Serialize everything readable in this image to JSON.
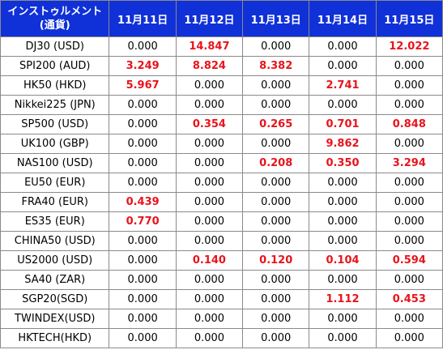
{
  "header": {
    "instrument_line1": "インストゥルメント",
    "instrument_line2": "(通貨)",
    "dates": [
      "11月11日",
      "11月12日",
      "11月13日",
      "11月14日",
      "11月15日"
    ]
  },
  "rows": [
    {
      "instrument": "DJ30 (USD)",
      "values": [
        "0.000",
        "14.847",
        "0.000",
        "0.000",
        "12.022"
      ]
    },
    {
      "instrument": "SPI200 (AUD)",
      "values": [
        "3.249",
        "8.824",
        "8.382",
        "0.000",
        "0.000"
      ]
    },
    {
      "instrument": "HK50 (HKD)",
      "values": [
        "5.967",
        "0.000",
        "0.000",
        "2.741",
        "0.000"
      ]
    },
    {
      "instrument": "Nikkei225 (JPN)",
      "values": [
        "0.000",
        "0.000",
        "0.000",
        "0.000",
        "0.000"
      ]
    },
    {
      "instrument": "SP500 (USD)",
      "values": [
        "0.000",
        "0.354",
        "0.265",
        "0.701",
        "0.848"
      ]
    },
    {
      "instrument": "UK100 (GBP)",
      "values": [
        "0.000",
        "0.000",
        "0.000",
        "9.862",
        "0.000"
      ]
    },
    {
      "instrument": "NAS100 (USD)",
      "values": [
        "0.000",
        "0.000",
        "0.208",
        "0.350",
        "3.294"
      ]
    },
    {
      "instrument": "EU50 (EUR)",
      "values": [
        "0.000",
        "0.000",
        "0.000",
        "0.000",
        "0.000"
      ]
    },
    {
      "instrument": "FRA40 (EUR)",
      "values": [
        "0.439",
        "0.000",
        "0.000",
        "0.000",
        "0.000"
      ]
    },
    {
      "instrument": "ES35 (EUR)",
      "values": [
        "0.770",
        "0.000",
        "0.000",
        "0.000",
        "0.000"
      ]
    },
    {
      "instrument": "CHINA50 (USD)",
      "values": [
        "0.000",
        "0.000",
        "0.000",
        "0.000",
        "0.000"
      ]
    },
    {
      "instrument": "US2000 (USD)",
      "values": [
        "0.000",
        "0.140",
        "0.120",
        "0.104",
        "0.594"
      ]
    },
    {
      "instrument": "SA40 (ZAR)",
      "values": [
        "0.000",
        "0.000",
        "0.000",
        "0.000",
        "0.000"
      ]
    },
    {
      "instrument": "SGP20(SGD)",
      "values": [
        "0.000",
        "0.000",
        "0.000",
        "1.112",
        "0.453"
      ]
    },
    {
      "instrument": "TWINDEX(USD)",
      "values": [
        "0.000",
        "0.000",
        "0.000",
        "0.000",
        "0.000"
      ]
    },
    {
      "instrument": "HKTECH(HKD)",
      "values": [
        "0.000",
        "0.000",
        "0.000",
        "0.000",
        "0.000"
      ]
    }
  ],
  "colors": {
    "header_background": "#1030d8",
    "header_text": "#ffffff",
    "highlight_text": "#e8141c",
    "normal_text": "#000000"
  }
}
